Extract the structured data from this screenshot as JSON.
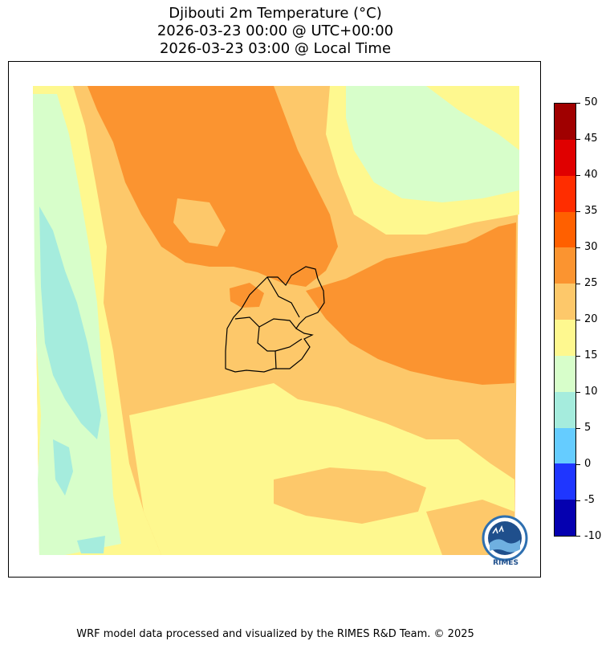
{
  "title": {
    "line1": "Djibouti 2m Temperature (°C)",
    "line2": "2026-03-23 00:00 @ UTC+00:00",
    "line3": "2026-03-23 03:00 @ Local Time"
  },
  "colorbar": {
    "labels": [
      "50",
      "45",
      "40",
      "35",
      "30",
      "25",
      "20",
      "15",
      "10",
      "5",
      "0",
      "-5",
      "-10"
    ],
    "colors_top_to_bottom": [
      "#a00000",
      "#e00000",
      "#ff2d00",
      "#ff6000",
      "#fb9430",
      "#fdc86a",
      "#fef88f",
      "#d7feca",
      "#a5ecdd",
      "#65ccff",
      "#1f36ff",
      "#0500b0"
    ]
  },
  "map": {
    "palette": {
      "cool_green": "#d7feca",
      "teal": "#a5ecdd",
      "yellow": "#fef88f",
      "light_orange": "#fdc86a",
      "orange": "#fb9430",
      "border": "#000000"
    }
  },
  "logo": {
    "text": "RIMES"
  },
  "footer": {
    "text": "WRF model data processed and visualized by the RIMES R&D Team. © 2025"
  }
}
